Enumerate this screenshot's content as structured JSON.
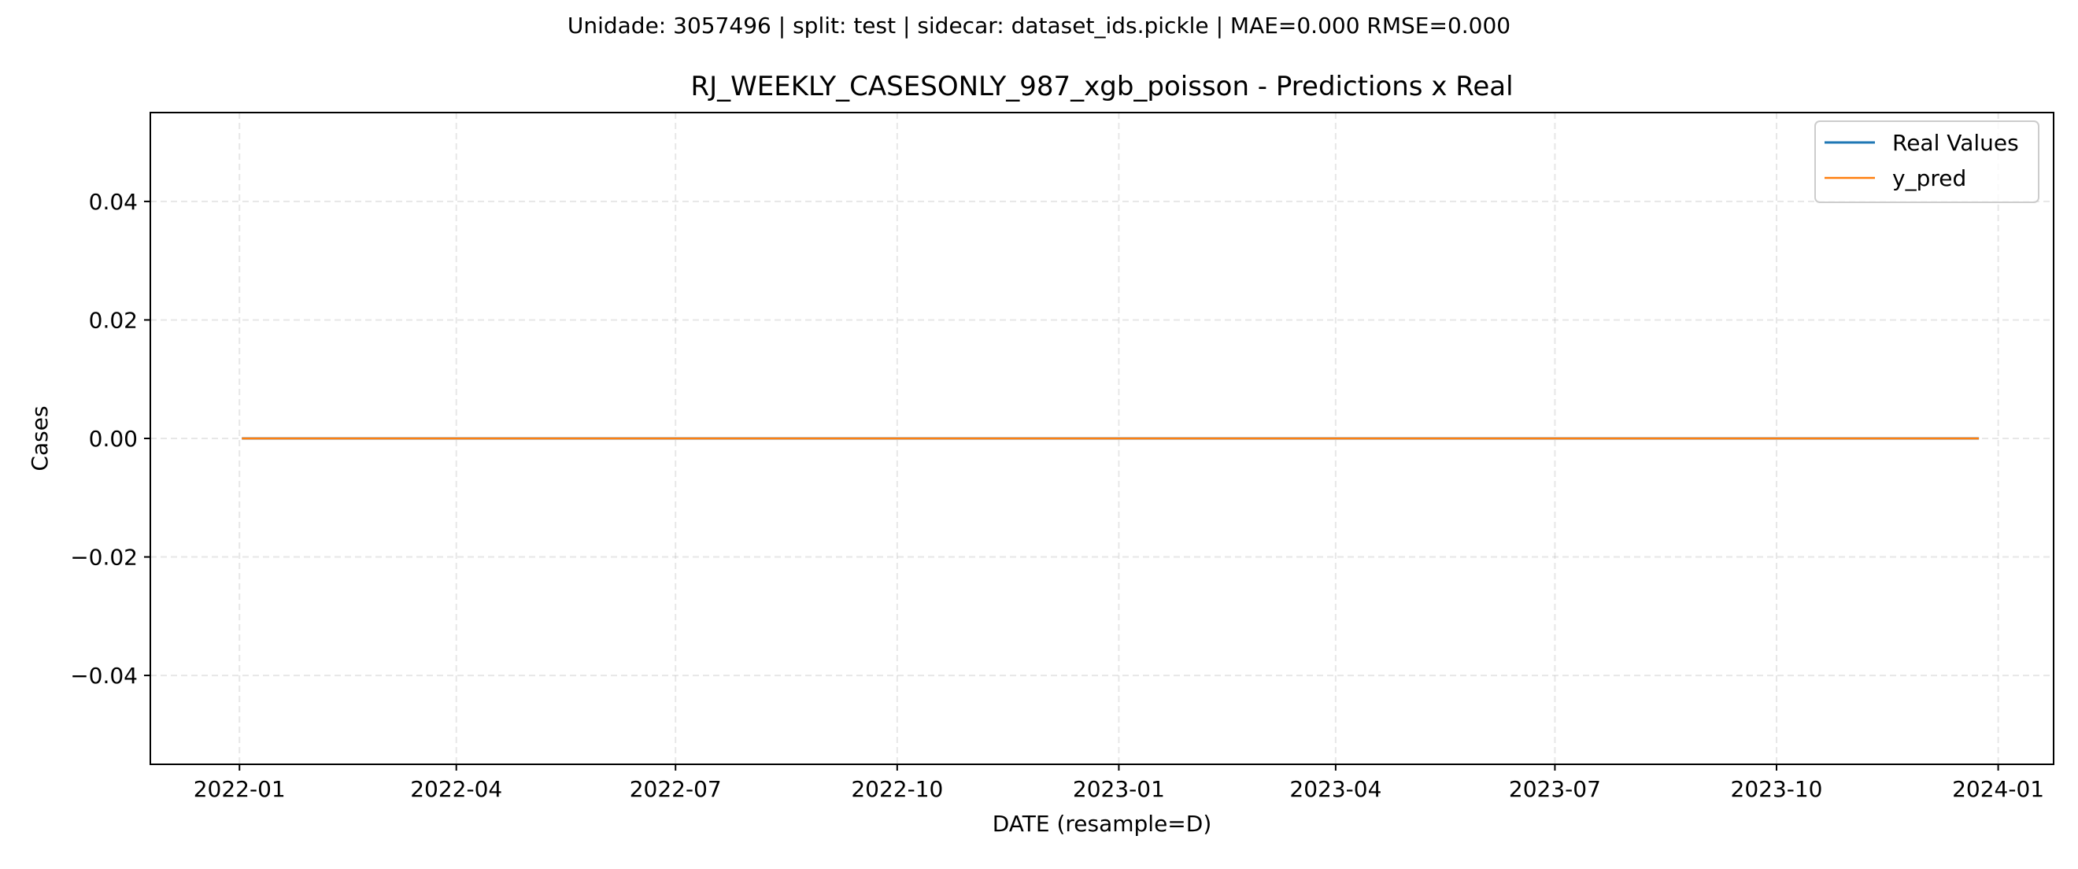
{
  "chart_data": {
    "type": "line",
    "suptitle": "Unidade: 3057496 | split: test | sidecar: dataset_ids.pickle | MAE=0.000  RMSE=0.000",
    "title": "RJ_WEEKLY_CASESONLY_987_xgb_poisson - Predictions x Real",
    "xlabel": "DATE (resample=D)",
    "ylabel": "Cases",
    "xlim": [
      "2021-11-25",
      "2024-01-24"
    ],
    "ylim": [
      -0.055,
      0.055
    ],
    "x_ticks": [
      "2022-01",
      "2022-04",
      "2022-07",
      "2022-10",
      "2023-01",
      "2023-04",
      "2023-07",
      "2023-10",
      "2024-01"
    ],
    "y_ticks": [
      0.04,
      0.02,
      0.0,
      -0.02,
      -0.04
    ],
    "y_tick_labels": [
      "0.04",
      "0.02",
      "0.00",
      "−0.02",
      "−0.04"
    ],
    "grid": true,
    "legend_position": "top-right",
    "x": [
      "2022-01-02",
      "2023-12-24"
    ],
    "series": [
      {
        "name": "Real Values",
        "color": "#1f77b4",
        "values": [
          0.0,
          0.0
        ]
      },
      {
        "name": "y_pred",
        "color": "#ff7f0e",
        "values": [
          0.0,
          0.0
        ]
      }
    ]
  }
}
